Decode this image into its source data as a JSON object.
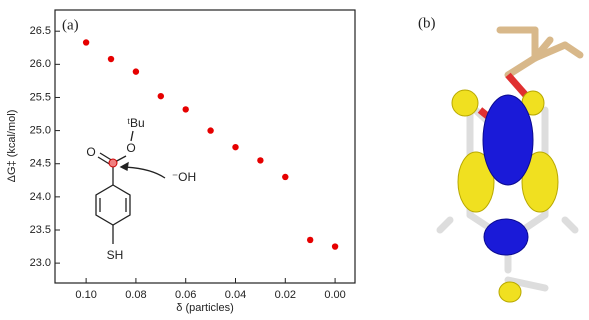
{
  "chart_data": {
    "type": "scatter",
    "x_label": "δ (particles)",
    "y_label": "ΔG‡ (kcal/mol)",
    "annotations": [
      "(a)",
      "ᵗBu",
      "O",
      "O",
      "⁻OH",
      "SH"
    ],
    "panel_b_label": "(b)",
    "color": "#e60000",
    "x": [
      0.1,
      0.09,
      0.08,
      0.07,
      0.06,
      0.05,
      0.04,
      0.03,
      0.02,
      0.01,
      0.0
    ],
    "values": [
      26.33,
      26.08,
      25.89,
      25.52,
      25.32,
      25.0,
      24.75,
      24.55,
      24.3,
      23.35,
      23.25
    ],
    "xlim": [
      0.1125,
      -0.008
    ],
    "ylim": [
      22.7,
      26.82
    ],
    "xticks": [
      {
        "value": 0.1,
        "label": "0.10"
      },
      {
        "value": 0.08,
        "label": "0.08"
      },
      {
        "value": 0.06,
        "label": "0.06"
      },
      {
        "value": 0.04,
        "label": "0.04"
      },
      {
        "value": 0.02,
        "label": "0.02"
      },
      {
        "value": 0,
        "label": "0.00"
      }
    ],
    "yticks": [
      {
        "value": 23,
        "label": "23.0"
      },
      23.5,
      {
        "value": 24,
        "label": "24.0"
      },
      24.5,
      {
        "value": 25,
        "label": "25.0"
      },
      25.5,
      {
        "value": 26,
        "label": "26.0"
      },
      26.5
    ]
  }
}
